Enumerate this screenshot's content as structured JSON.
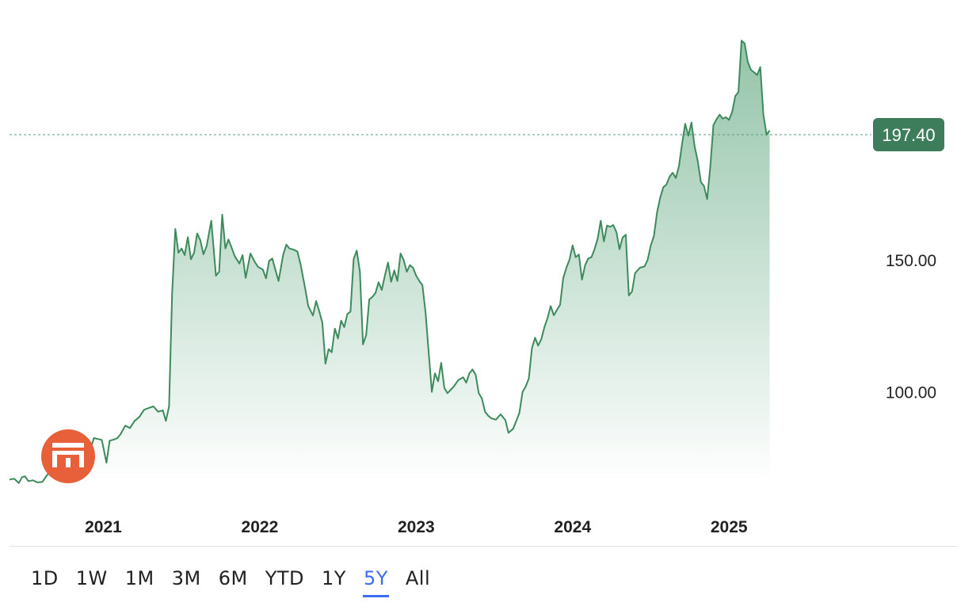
{
  "chart_data": {
    "type": "area",
    "current_price_label": "197.40",
    "current_price": 197.4,
    "y_ticks": [
      {
        "value": 150,
        "label": "150.00"
      },
      {
        "value": 100,
        "label": "100.00"
      }
    ],
    "x_ticks": [
      {
        "value": 2021.0,
        "label": "2021"
      },
      {
        "value": 2022.0,
        "label": "2022"
      },
      {
        "value": 2023.0,
        "label": "2023"
      },
      {
        "value": 2024.0,
        "label": "2024"
      },
      {
        "value": 2025.0,
        "label": "2025"
      }
    ],
    "ylim": [
      66,
      237
    ],
    "xlim": [
      2020.4,
      2025.86
    ],
    "series": [
      {
        "points": [
          [
            2020.4,
            66.8
          ],
          [
            2020.43,
            67.1
          ],
          [
            2020.46,
            65.5
          ],
          [
            2020.48,
            67.7
          ],
          [
            2020.5,
            68.0
          ],
          [
            2020.52,
            66.2
          ],
          [
            2020.55,
            66.5
          ],
          [
            2020.58,
            65.7
          ],
          [
            2020.61,
            65.9
          ],
          [
            2020.64,
            68.5
          ],
          [
            2020.67,
            70.5
          ],
          [
            2020.7,
            72.5
          ],
          [
            2020.73,
            73.2
          ],
          [
            2020.76,
            73.7
          ],
          [
            2020.79,
            74.0
          ],
          [
            2020.82,
            73.5
          ],
          [
            2020.85,
            75.5
          ],
          [
            2020.88,
            77.8
          ],
          [
            2020.9,
            80.0
          ],
          [
            2020.92,
            79.0
          ],
          [
            2020.94,
            82.5
          ],
          [
            2020.97,
            82.1
          ],
          [
            2020.99,
            81.8
          ],
          [
            2021.02,
            73.2
          ],
          [
            2021.04,
            81.5
          ],
          [
            2021.07,
            82.0
          ],
          [
            2021.09,
            82.5
          ],
          [
            2021.11,
            84.0
          ],
          [
            2021.14,
            87.2
          ],
          [
            2021.17,
            86.3
          ],
          [
            2021.2,
            89.0
          ],
          [
            2021.23,
            90.5
          ],
          [
            2021.26,
            93.2
          ],
          [
            2021.29,
            93.9
          ],
          [
            2021.32,
            94.5
          ],
          [
            2021.35,
            92.5
          ],
          [
            2021.38,
            93.0
          ],
          [
            2021.4,
            89.0
          ],
          [
            2021.42,
            94.5
          ],
          [
            2021.44,
            137.5
          ],
          [
            2021.46,
            161.7
          ],
          [
            2021.48,
            152.7
          ],
          [
            2021.5,
            154.3
          ],
          [
            2021.52,
            151.8
          ],
          [
            2021.54,
            158.6
          ],
          [
            2021.56,
            150.2
          ],
          [
            2021.58,
            152.7
          ],
          [
            2021.6,
            160.0
          ],
          [
            2021.62,
            157.4
          ],
          [
            2021.64,
            152.1
          ],
          [
            2021.66,
            155.2
          ],
          [
            2021.69,
            164.8
          ],
          [
            2021.72,
            144.0
          ],
          [
            2021.74,
            145.5
          ],
          [
            2021.76,
            167.1
          ],
          [
            2021.78,
            154.3
          ],
          [
            2021.8,
            157.7
          ],
          [
            2021.82,
            154.6
          ],
          [
            2021.84,
            151.4
          ],
          [
            2021.87,
            148.6
          ],
          [
            2021.89,
            151.8
          ],
          [
            2021.91,
            143.2
          ],
          [
            2021.94,
            152.4
          ],
          [
            2021.97,
            149.0
          ],
          [
            2021.99,
            147.3
          ],
          [
            2022.02,
            146.3
          ],
          [
            2022.04,
            143.0
          ],
          [
            2022.06,
            149.6
          ],
          [
            2022.08,
            150.5
          ],
          [
            2022.12,
            142.0
          ],
          [
            2022.15,
            152.0
          ],
          [
            2022.17,
            155.8
          ],
          [
            2022.19,
            154.3
          ],
          [
            2022.21,
            154.0
          ],
          [
            2022.24,
            153.2
          ],
          [
            2022.26,
            148.6
          ],
          [
            2022.29,
            139.2
          ],
          [
            2022.31,
            132.5
          ],
          [
            2022.34,
            128.9
          ],
          [
            2022.36,
            134.4
          ],
          [
            2022.38,
            130.6
          ],
          [
            2022.4,
            126.2
          ],
          [
            2022.42,
            110.7
          ],
          [
            2022.44,
            116.2
          ],
          [
            2022.46,
            115.0
          ],
          [
            2022.48,
            124.0
          ],
          [
            2022.5,
            120.2
          ],
          [
            2022.52,
            127.0
          ],
          [
            2022.54,
            124.5
          ],
          [
            2022.56,
            129.5
          ],
          [
            2022.58,
            130.4
          ],
          [
            2022.6,
            150.3
          ],
          [
            2022.62,
            153.5
          ],
          [
            2022.64,
            145.5
          ],
          [
            2022.66,
            118.0
          ],
          [
            2022.68,
            121.5
          ],
          [
            2022.7,
            135.0
          ],
          [
            2022.72,
            136.0
          ],
          [
            2022.74,
            137.5
          ],
          [
            2022.76,
            141.5
          ],
          [
            2022.78,
            138.6
          ],
          [
            2022.8,
            144.0
          ],
          [
            2022.82,
            149.0
          ],
          [
            2022.84,
            141.7
          ],
          [
            2022.86,
            146.0
          ],
          [
            2022.88,
            142.0
          ],
          [
            2022.9,
            152.4
          ],
          [
            2022.92,
            150.0
          ],
          [
            2022.94,
            145.5
          ],
          [
            2022.96,
            148.0
          ],
          [
            2022.98,
            147.0
          ],
          [
            2023.0,
            144.0
          ],
          [
            2023.02,
            142.0
          ],
          [
            2023.04,
            140.5
          ],
          [
            2023.06,
            130.0
          ],
          [
            2023.08,
            115.0
          ],
          [
            2023.1,
            100.0
          ],
          [
            2023.12,
            107.0
          ],
          [
            2023.14,
            104.0
          ],
          [
            2023.16,
            111.0
          ],
          [
            2023.18,
            101.5
          ],
          [
            2023.2,
            99.5
          ],
          [
            2023.24,
            102.0
          ],
          [
            2023.27,
            104.5
          ],
          [
            2023.3,
            105.5
          ],
          [
            2023.32,
            103.5
          ],
          [
            2023.34,
            107.0
          ],
          [
            2023.36,
            108.5
          ],
          [
            2023.38,
            106.5
          ],
          [
            2023.4,
            99.5
          ],
          [
            2023.42,
            97.5
          ],
          [
            2023.44,
            92.5
          ],
          [
            2023.46,
            91.0
          ],
          [
            2023.48,
            90.0
          ],
          [
            2023.51,
            89.5
          ],
          [
            2023.54,
            91.5
          ],
          [
            2023.57,
            89.3
          ],
          [
            2023.59,
            84.5
          ],
          [
            2023.62,
            86.0
          ],
          [
            2023.64,
            89.0
          ],
          [
            2023.66,
            92.0
          ],
          [
            2023.68,
            100.0
          ],
          [
            2023.7,
            102.0
          ],
          [
            2023.72,
            105.0
          ],
          [
            2023.74,
            116.5
          ],
          [
            2023.76,
            120.5
          ],
          [
            2023.78,
            117.5
          ],
          [
            2023.8,
            120.0
          ],
          [
            2023.82,
            124.5
          ],
          [
            2023.84,
            128.0
          ],
          [
            2023.86,
            132.5
          ],
          [
            2023.88,
            129.0
          ],
          [
            2023.9,
            131.0
          ],
          [
            2023.92,
            133.0
          ],
          [
            2023.94,
            143.0
          ],
          [
            2023.96,
            147.0
          ],
          [
            2023.98,
            150.0
          ],
          [
            2024.0,
            155.5
          ],
          [
            2024.02,
            151.0
          ],
          [
            2024.04,
            152.0
          ],
          [
            2024.06,
            142.5
          ],
          [
            2024.08,
            148.0
          ],
          [
            2024.1,
            150.5
          ],
          [
            2024.12,
            151.0
          ],
          [
            2024.14,
            154.0
          ],
          [
            2024.16,
            158.0
          ],
          [
            2024.18,
            164.8
          ],
          [
            2024.2,
            157.0
          ],
          [
            2024.22,
            163.0
          ],
          [
            2024.24,
            162.5
          ],
          [
            2024.26,
            163.2
          ],
          [
            2024.28,
            160.5
          ],
          [
            2024.3,
            154.0
          ],
          [
            2024.32,
            158.5
          ],
          [
            2024.34,
            159.5
          ],
          [
            2024.36,
            136.5
          ],
          [
            2024.38,
            138.0
          ],
          [
            2024.4,
            145.0
          ],
          [
            2024.43,
            147.0
          ],
          [
            2024.46,
            147.5
          ],
          [
            2024.48,
            150.0
          ],
          [
            2024.5,
            155.5
          ],
          [
            2024.52,
            159.0
          ],
          [
            2024.54,
            168.0
          ],
          [
            2024.56,
            173.5
          ],
          [
            2024.58,
            177.5
          ],
          [
            2024.6,
            178.5
          ],
          [
            2024.62,
            181.5
          ],
          [
            2024.64,
            183.0
          ],
          [
            2024.66,
            181.0
          ],
          [
            2024.68,
            185.5
          ],
          [
            2024.7,
            194.0
          ],
          [
            2024.72,
            201.5
          ],
          [
            2024.74,
            197.0
          ],
          [
            2024.76,
            202.0
          ],
          [
            2024.78,
            193.0
          ],
          [
            2024.8,
            187.5
          ],
          [
            2024.82,
            179.5
          ],
          [
            2024.84,
            178.0
          ],
          [
            2024.86,
            173.0
          ],
          [
            2024.88,
            185.0
          ],
          [
            2024.9,
            201.0
          ],
          [
            2024.92,
            203.2
          ],
          [
            2024.94,
            205.0
          ],
          [
            2024.96,
            203.5
          ],
          [
            2024.98,
            204.0
          ],
          [
            2025.0,
            203.0
          ],
          [
            2025.02,
            206.0
          ],
          [
            2025.04,
            212.0
          ],
          [
            2025.06,
            213.5
          ],
          [
            2025.08,
            233.0
          ],
          [
            2025.1,
            232.0
          ],
          [
            2025.12,
            225.0
          ],
          [
            2025.14,
            222.0
          ],
          [
            2025.16,
            221.0
          ],
          [
            2025.18,
            220.0
          ],
          [
            2025.2,
            223.0
          ],
          [
            2025.22,
            205.0
          ],
          [
            2025.24,
            197.4
          ],
          [
            2025.26,
            199.0
          ]
        ]
      }
    ]
  },
  "range_selector": {
    "options": [
      "1D",
      "1W",
      "1M",
      "3M",
      "6M",
      "YTD",
      "1Y",
      "5Y",
      "All"
    ],
    "selected": "5Y"
  },
  "colors": {
    "line": "#3d8a5c",
    "fill_top": "#8ec1a5",
    "fill_bottom": "#ffffff",
    "badge": "#3d7d5b",
    "accent": "#3a6df0"
  }
}
